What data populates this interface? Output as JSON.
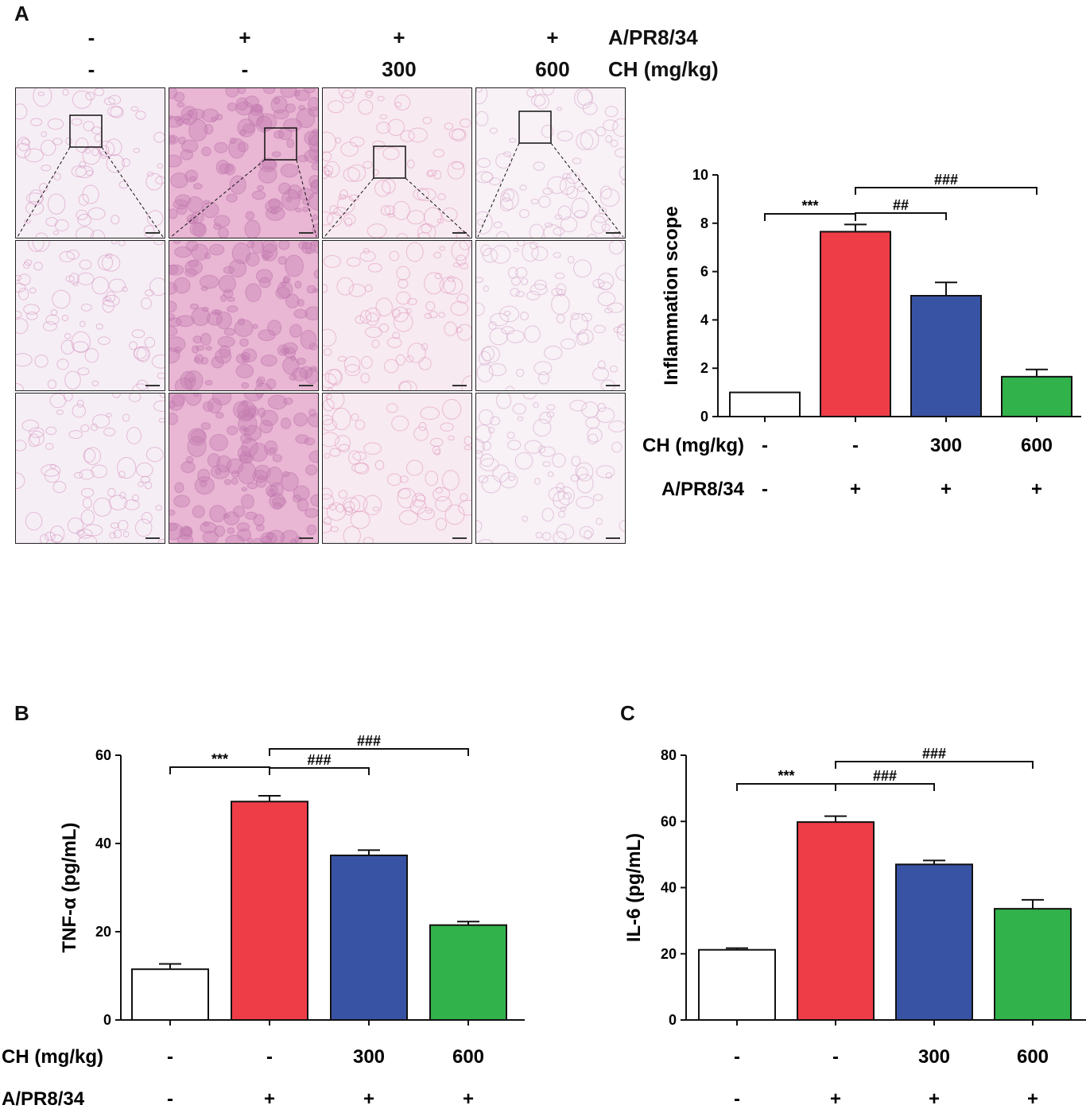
{
  "panel_a": {
    "letter": "A",
    "header_rows": [
      {
        "label": "A/PR8/34",
        "values": [
          "-",
          "+",
          "+",
          "+"
        ]
      },
      {
        "label": "CH (mg/kg)",
        "values": [
          "-",
          "-",
          "300",
          "600"
        ]
      }
    ],
    "micro_grid": {
      "columns": [
        {
          "tissue": "#f6eef5",
          "stain": "#d79ac4",
          "density": "low"
        },
        {
          "tissue": "#e9b6d3",
          "stain": "#c27ab0",
          "density": "high"
        },
        {
          "tissue": "#f7eaf1",
          "stain": "#e39bc0",
          "density": "low"
        },
        {
          "tissue": "#f8f1f6",
          "stain": "#d6a9cc",
          "density": "low"
        }
      ],
      "rows": 3
    }
  },
  "panel_b": {
    "letter": "B"
  },
  "panel_c": {
    "letter": "C"
  },
  "colors": [
    "#ffffff",
    "#ee3d47",
    "#3953a4",
    "#32b24a"
  ],
  "chart_data": [
    {
      "type": "bar",
      "ylabel": "Inflammation scope",
      "ylim": [
        0,
        10
      ],
      "yticks": [
        0,
        2,
        4,
        6,
        8,
        10
      ],
      "values": [
        1.0,
        7.65,
        5.0,
        1.65
      ],
      "errors": [
        0,
        0.3,
        0.55,
        0.3
      ],
      "factor_rows": [
        {
          "label": "CH (mg/kg)",
          "values": [
            "-",
            "-",
            "300",
            "600"
          ]
        },
        {
          "label": "A/PR8/34",
          "values": [
            "-",
            "+",
            "+",
            "+"
          ]
        }
      ],
      "brackets": [
        {
          "from": 0,
          "to": 1,
          "label": "***"
        },
        {
          "from": 1,
          "to": 2,
          "label": "##"
        },
        {
          "from": 1,
          "to": 3,
          "label": "###"
        }
      ]
    },
    {
      "type": "bar",
      "ylabel": "TNF-α (pg/mL)",
      "ylim": [
        0,
        60
      ],
      "yticks": [
        0,
        20,
        40,
        60
      ],
      "values": [
        11.5,
        49.5,
        37.3,
        21.5
      ],
      "errors": [
        1.2,
        1.3,
        1.2,
        0.8
      ],
      "factor_rows": [
        {
          "label": "CH (mg/kg)",
          "values": [
            "-",
            "-",
            "300",
            "600"
          ]
        },
        {
          "label": "A/PR8/34",
          "values": [
            "-",
            "+",
            "+",
            "+"
          ]
        }
      ],
      "brackets": [
        {
          "from": 0,
          "to": 1,
          "label": "***"
        },
        {
          "from": 1,
          "to": 2,
          "label": "###"
        },
        {
          "from": 1,
          "to": 3,
          "label": "###"
        }
      ]
    },
    {
      "type": "bar",
      "ylabel": "IL-6 (pg/mL)",
      "ylim": [
        0,
        80
      ],
      "yticks": [
        0,
        20,
        40,
        60,
        80
      ],
      "values": [
        21.2,
        59.8,
        47.0,
        33.6
      ],
      "errors": [
        0.5,
        1.8,
        1.2,
        2.7
      ],
      "factor_rows": [
        {
          "label": "",
          "values": [
            "-",
            "-",
            "300",
            "600"
          ]
        },
        {
          "label": "",
          "values": [
            "-",
            "+",
            "+",
            "+"
          ]
        }
      ],
      "brackets": [
        {
          "from": 0,
          "to": 1,
          "label": "***"
        },
        {
          "from": 1,
          "to": 2,
          "label": "###"
        },
        {
          "from": 1,
          "to": 3,
          "label": "###"
        }
      ]
    }
  ]
}
